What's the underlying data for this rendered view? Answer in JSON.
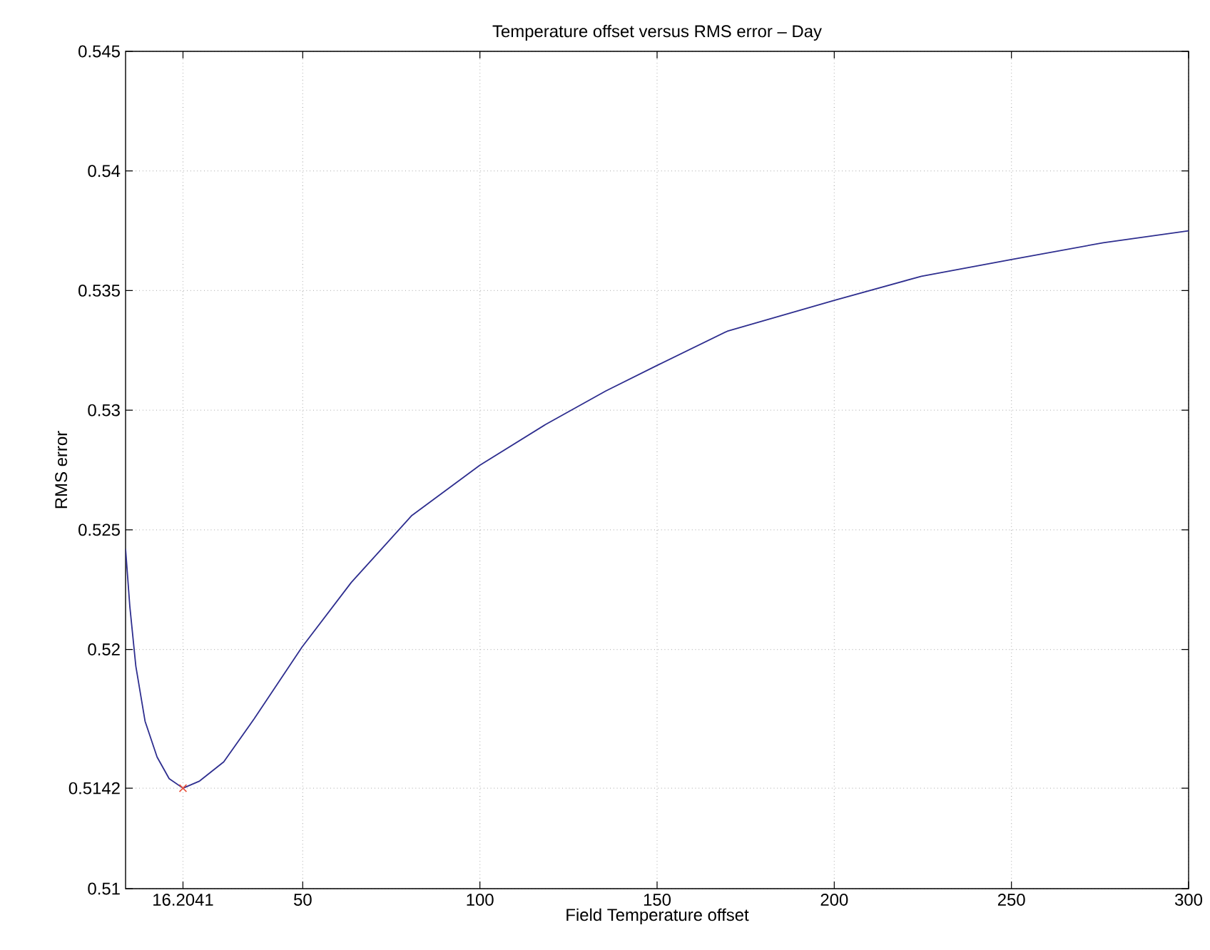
{
  "chart_data": {
    "type": "line",
    "title": "Temperature offset versus RMS error – Day",
    "xlabel": "Field Temperature offset",
    "ylabel": "RMS error",
    "xlim": [
      0,
      300
    ],
    "ylim": [
      0.51,
      0.545
    ],
    "xticks": [
      16.2041,
      50,
      100,
      150,
      200,
      250,
      300
    ],
    "yticks": [
      0.51,
      0.5142,
      0.52,
      0.525,
      0.53,
      0.535,
      0.54,
      0.545
    ],
    "grid": true,
    "line_style": "solid",
    "series": [
      {
        "color": "#2e2e8f",
        "marker": "none",
        "x": [
          0,
          1.2,
          2.9,
          5.5,
          8.9,
          12.3,
          16.2041,
          20.9,
          27.7,
          36.3,
          49.8,
          63.7,
          80.8,
          100,
          118.5,
          135.5,
          150.4,
          169.8,
          200.2,
          224.6,
          250,
          275.9,
          300
        ],
        "values": [
          0.5242,
          0.5218,
          0.5193,
          0.517,
          0.5155,
          0.5146,
          0.5142,
          0.5145,
          0.5153,
          0.5171,
          0.5201,
          0.5228,
          0.5256,
          0.5277,
          0.5294,
          0.5308,
          0.5319,
          0.5333,
          0.5346,
          0.5356,
          0.5363,
          0.537,
          0.5375
        ]
      },
      {
        "type": "scatter",
        "color": "#e8503a",
        "marker": "cross",
        "x": [
          16.2041
        ],
        "values": [
          0.5142
        ]
      }
    ]
  }
}
